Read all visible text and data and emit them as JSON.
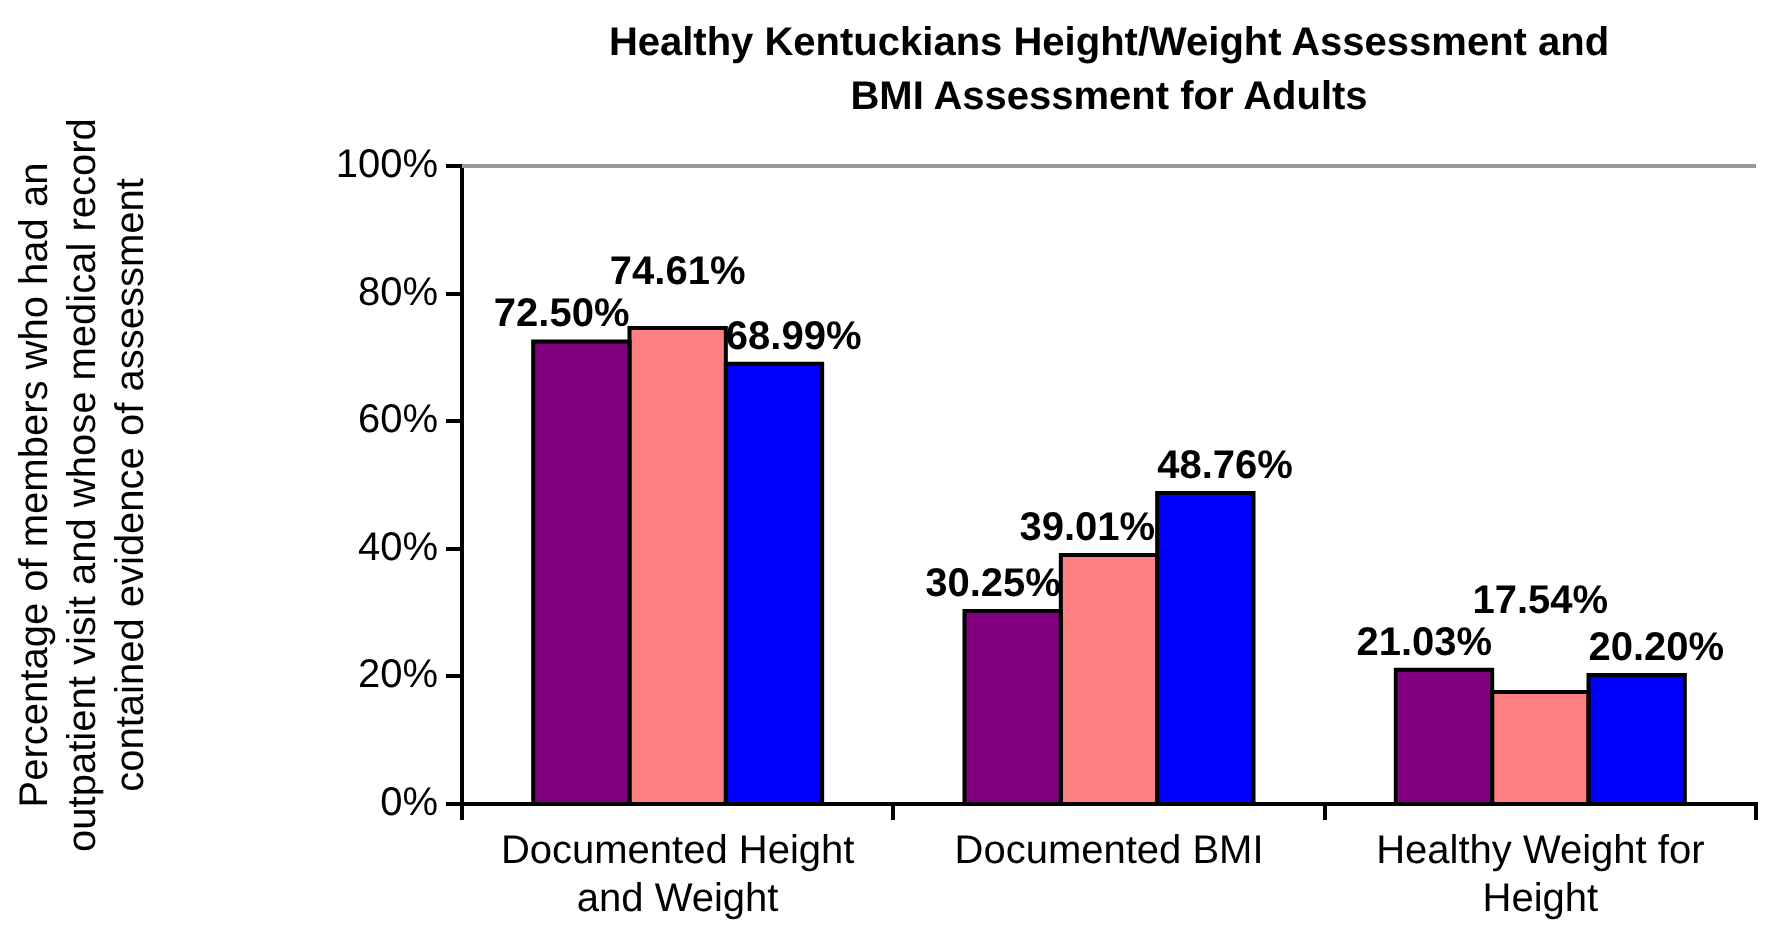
{
  "chart_data": {
    "type": "bar",
    "title": "Healthy Kentuckians Height/Weight Assessment and BMI Assessment for Adults",
    "ylabel": "Percentage of members who had an outpatient visit and whose medical record contained evidence of assessment",
    "categories": [
      "Documented Height and Weight",
      "Documented BMI",
      "Healthy Weight for Height"
    ],
    "series": [
      {
        "color": "#800080",
        "values": [
          72.5,
          30.25,
          21.03
        ],
        "value_labels": [
          "72.50%",
          "30.25%",
          "21.03%"
        ]
      },
      {
        "color": "#ff8080",
        "values": [
          74.61,
          39.01,
          17.54
        ],
        "value_labels": [
          "74.61%",
          "39.01%",
          "17.54%"
        ]
      },
      {
        "color": "#0000ff",
        "values": [
          68.99,
          48.76,
          20.2
        ],
        "value_labels": [
          "68.99%",
          "48.76%",
          "20.20%"
        ]
      }
    ],
    "ylim": [
      0,
      100
    ],
    "yticks": [
      {
        "value": 0,
        "label": "0%"
      },
      {
        "value": 20,
        "label": "20%"
      },
      {
        "value": 40,
        "label": "40%"
      },
      {
        "value": 60,
        "label": "60%"
      },
      {
        "value": 80,
        "label": "80%"
      },
      {
        "value": 100,
        "label": "100%"
      }
    ]
  }
}
